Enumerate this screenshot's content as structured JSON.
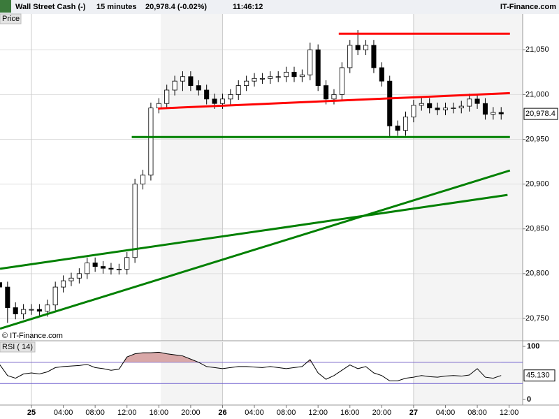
{
  "chart_data": {
    "type": "candlestick",
    "instrument": "Wall Street Cash (-)",
    "interval": "15 minutes",
    "quote": "20,978.4 (-0.02%)",
    "time": "11:46:12",
    "brand": "IT-Finance.com",
    "panel_label": "Price",
    "watermark": "© IT-Finance.com",
    "last_price": {
      "value": 20978.4,
      "label": "20,978.4"
    },
    "x": [
      -4,
      -3,
      -2,
      -1,
      0,
      1,
      2,
      3,
      4,
      5,
      6,
      7,
      8,
      9,
      10,
      11,
      12,
      13,
      14,
      15,
      16,
      17,
      18,
      19,
      20,
      21,
      22,
      23,
      24,
      25,
      26,
      27,
      28,
      29,
      30,
      31,
      32,
      33,
      34,
      35,
      36,
      37,
      38,
      39,
      40,
      41,
      42,
      43,
      44,
      45,
      46,
      47,
      48,
      49,
      50,
      51,
      52,
      53,
      54,
      55,
      56,
      57,
      58,
      59
    ],
    "open": [
      20790,
      20785,
      20762,
      20755,
      20760,
      20760,
      20758,
      20765,
      20785,
      20792,
      20795,
      20800,
      20812,
      20808,
      20806,
      20805,
      20805,
      20818,
      20900,
      20910,
      20985,
      20990,
      21005,
      21015,
      21020,
      21010,
      21005,
      20995,
      20990,
      20995,
      21000,
      21010,
      21015,
      21018,
      21018,
      21020,
      21020,
      21025,
      21020,
      21022,
      21050,
      21010,
      20995,
      21000,
      21030,
      21055,
      21050,
      21055,
      21030,
      21015,
      20965,
      20960,
      20975,
      20988,
      20990,
      20985,
      20983,
      20985,
      20985,
      20987,
      20995,
      20990,
      20978,
      20980
    ],
    "high": [
      20796,
      20791,
      20768,
      20766,
      20766,
      20766,
      20771,
      20791,
      20798,
      20801,
      20806,
      20818,
      20818,
      20814,
      20812,
      20811,
      20824,
      20906,
      20916,
      20991,
      20996,
      21011,
      21021,
      21026,
      21026,
      21016,
      21011,
      21001,
      21001,
      21006,
      21016,
      21021,
      21024,
      21024,
      21026,
      21026,
      21031,
      21031,
      21028,
      21058,
      21056,
      21016,
      21006,
      21036,
      21061,
      21072,
      21061,
      21061,
      21036,
      21021,
      20971,
      20981,
      20994,
      20996,
      20996,
      20991,
      20991,
      20991,
      20993,
      21001,
      21001,
      20996,
      20986,
      20986
    ],
    "low": [
      20779,
      20745,
      20749,
      20749,
      20754,
      20752,
      20752,
      20759,
      20779,
      20786,
      20789,
      20794,
      20802,
      20800,
      20799,
      20799,
      20799,
      20812,
      20894,
      20904,
      20979,
      20984,
      20999,
      21004,
      21004,
      20999,
      20989,
      20984,
      20984,
      20989,
      20994,
      21004,
      21009,
      21012,
      21012,
      21014,
      21014,
      21014,
      21014,
      21016,
      21004,
      20989,
      20989,
      20994,
      21024,
      21044,
      21044,
      21024,
      21009,
      20952,
      20954,
      20954,
      20969,
      20982,
      20979,
      20977,
      20977,
      20979,
      20979,
      20981,
      20984,
      20972,
      20972,
      20972
    ],
    "close": [
      20785,
      20762,
      20755,
      20760,
      20760,
      20758,
      20765,
      20785,
      20792,
      20795,
      20800,
      20812,
      20808,
      20806,
      20805,
      20805,
      20818,
      20900,
      20910,
      20985,
      20990,
      21005,
      21015,
      21020,
      21010,
      21005,
      20995,
      20990,
      20995,
      21000,
      21010,
      21015,
      21018,
      21018,
      21020,
      21020,
      21025,
      21020,
      21022,
      21050,
      21010,
      20995,
      21000,
      21030,
      21055,
      21050,
      21055,
      21030,
      21015,
      20965,
      20960,
      20975,
      20988,
      20990,
      20985,
      20983,
      20985,
      20985,
      20987,
      20995,
      20990,
      20978,
      20980,
      20978.4
    ],
    "xlim": [
      -3.95,
      61.7
    ],
    "ylim": [
      20725,
      21090
    ],
    "xticks": [
      {
        "value": 0,
        "label": "25"
      },
      {
        "value": 4,
        "label": "04:00"
      },
      {
        "value": 8,
        "label": "08:00"
      },
      {
        "value": 12,
        "label": "12:00"
      },
      {
        "value": 16,
        "label": "16:00"
      },
      {
        "value": 20,
        "label": "20:00"
      },
      {
        "value": 24,
        "label": "26"
      },
      {
        "value": 28,
        "label": "04:00"
      },
      {
        "value": 32,
        "label": "08:00"
      },
      {
        "value": 36,
        "label": "12:00"
      },
      {
        "value": 40,
        "label": "16:00"
      },
      {
        "value": 44,
        "label": "20:00"
      },
      {
        "value": 48,
        "label": "27"
      },
      {
        "value": 52,
        "label": "04:00"
      },
      {
        "value": 56,
        "label": "08:00"
      },
      {
        "value": 60,
        "label": "12:00"
      }
    ],
    "yticks": [
      {
        "value": 20750,
        "label": "20,750"
      },
      {
        "value": 20800,
        "label": "20,800"
      },
      {
        "value": 20850,
        "label": "20,850"
      },
      {
        "value": 20900,
        "label": "20,900"
      },
      {
        "value": 20950,
        "label": "20,950"
      },
      {
        "value": 21000,
        "label": "21,000"
      },
      {
        "value": 21050,
        "label": "21,050"
      }
    ],
    "trendlines": [
      {
        "color": "#ff0000",
        "x": [
          38.6,
          60.1
        ],
        "y": [
          21068,
          21068
        ]
      },
      {
        "color": "#ff0000",
        "x": [
          15.9,
          60.1
        ],
        "y": [
          20984.4,
          21001.6
        ]
      },
      {
        "color": "#008000",
        "x": [
          12.6,
          60.1
        ],
        "y": [
          20952.5,
          20952.5
        ]
      },
      {
        "color": "#008000",
        "x": [
          -3.95,
          59.8
        ],
        "y": [
          20805.4,
          20887.9
        ]
      },
      {
        "color": "#008000",
        "x": [
          -3.95,
          60.1
        ],
        "y": [
          20738.5,
          20915.2
        ]
      }
    ],
    "rsi": {
      "name": "RSI ( 14)",
      "color": "#000000",
      "values": [
        66,
        45,
        40,
        48,
        50,
        48,
        52,
        60,
        62,
        63,
        64,
        66,
        60,
        58,
        55,
        57,
        80,
        86,
        88,
        88,
        89,
        86,
        84,
        82,
        76,
        70,
        62,
        60,
        58,
        60,
        62,
        62,
        61,
        60,
        62,
        60,
        58,
        60,
        62,
        75,
        50,
        38,
        45,
        55,
        65,
        58,
        62,
        50,
        45,
        35,
        35,
        40,
        42,
        45,
        43,
        42,
        44,
        45,
        44,
        46,
        58,
        42,
        40,
        45.13
      ],
      "value_label": "45.130",
      "ylim": [
        0,
        100
      ],
      "yticks": [
        100,
        0
      ],
      "levels": [
        30,
        70
      ],
      "overbought_color": "#d9a8a8"
    }
  }
}
